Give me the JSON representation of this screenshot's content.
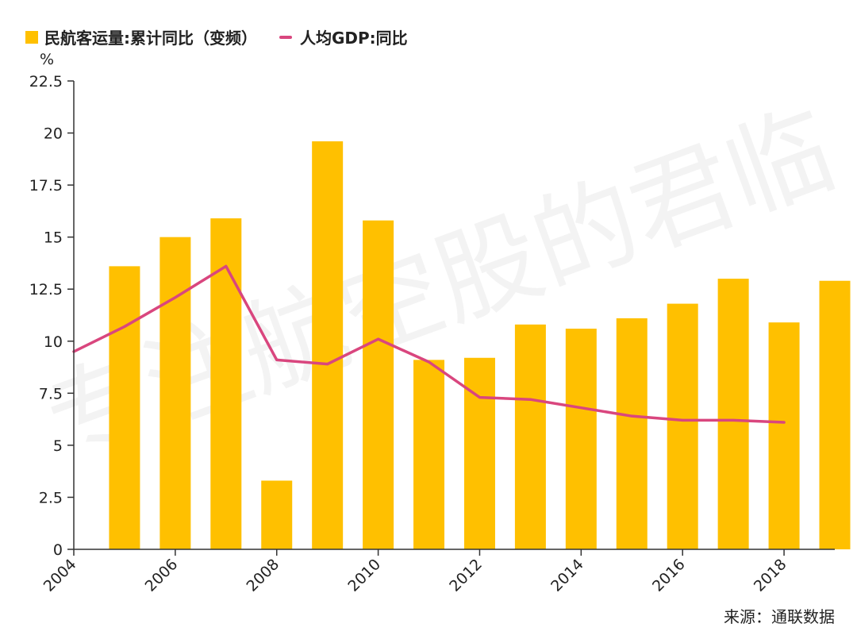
{
  "legend": {
    "bar_label": "民航客运量:累计同比（变频）",
    "line_label": "人均GDP:同比"
  },
  "unit": "%",
  "source": "来源：通联数据",
  "watermark": "专注航空股的君临",
  "colors": {
    "bar": "#FFC000",
    "line": "#D9467E",
    "axis": "#333333"
  },
  "chart_data": {
    "type": "bar",
    "title": "",
    "xlabel": "",
    "ylabel": "%",
    "ylim": [
      0,
      22.5
    ],
    "yticks": [
      "0",
      "2.5",
      "5",
      "7.5",
      "10",
      "12.5",
      "15",
      "17.5",
      "20",
      "22.5"
    ],
    "xlim": [
      2004,
      2019
    ],
    "xticks": [
      "2004",
      "2006",
      "2008",
      "2010",
      "2012",
      "2014",
      "2016",
      "2018"
    ],
    "series": [
      {
        "name": "民航客运量:累计同比（变频）",
        "type": "bar",
        "x": [
          2005,
          2006,
          2007,
          2008,
          2009,
          2010,
          2011,
          2012,
          2013,
          2014,
          2015,
          2016,
          2017,
          2018,
          2019
        ],
        "values": [
          13.6,
          15.0,
          15.9,
          3.3,
          19.6,
          15.8,
          9.1,
          9.2,
          10.8,
          10.6,
          11.1,
          11.8,
          13.0,
          10.9,
          12.9
        ]
      },
      {
        "name": "人均GDP:同比",
        "type": "line",
        "x": [
          2004,
          2005,
          2006,
          2007,
          2008,
          2009,
          2010,
          2011,
          2012,
          2013,
          2014,
          2015,
          2016,
          2017,
          2018
        ],
        "values": [
          9.5,
          10.7,
          12.1,
          13.6,
          9.1,
          8.9,
          10.1,
          9.0,
          7.3,
          7.2,
          6.8,
          6.4,
          6.2,
          6.2,
          6.1
        ]
      }
    ]
  }
}
